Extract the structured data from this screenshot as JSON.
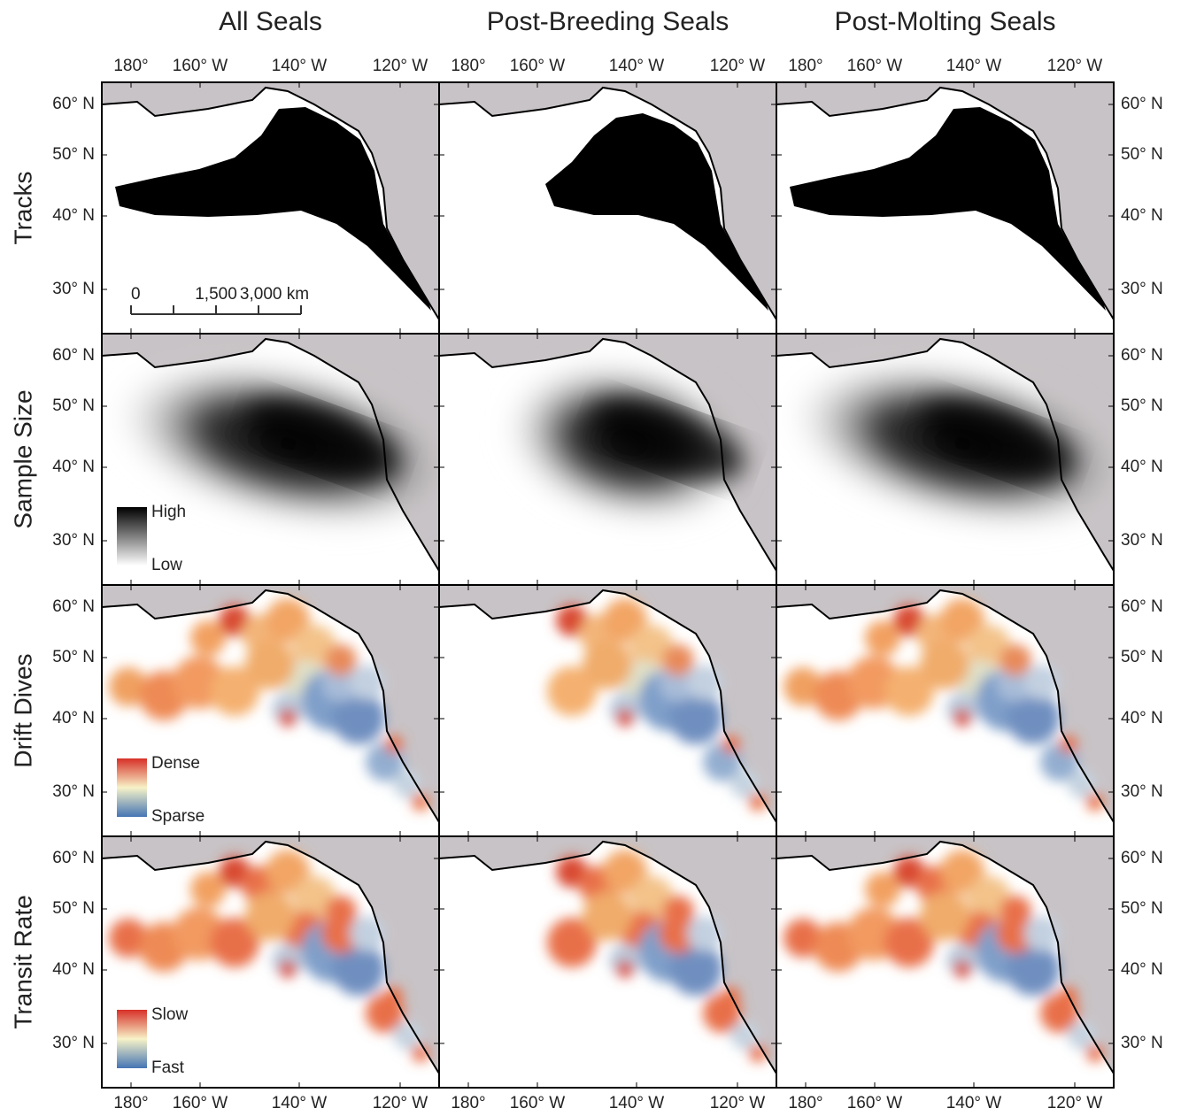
{
  "column_titles": [
    "All Seals",
    "Post-Breeding Seals",
    "Post-Molting Seals"
  ],
  "row_labels": [
    "Tracks",
    "Sample Size",
    "Drift Dives",
    "Transit Rate"
  ],
  "longitude_labels": [
    "180°",
    "160° W",
    "140° W",
    "120° W"
  ],
  "latitude_labels": [
    "60° N",
    "50° N",
    "40° N",
    "30° N"
  ],
  "scale_bar": [
    "0",
    "1,500",
    "3,000 km"
  ],
  "legends": [
    {
      "high": "High",
      "low": "Low"
    },
    {
      "high": "Dense",
      "low": "Sparse"
    },
    {
      "high": "Slow",
      "low": "Fast"
    }
  ]
}
